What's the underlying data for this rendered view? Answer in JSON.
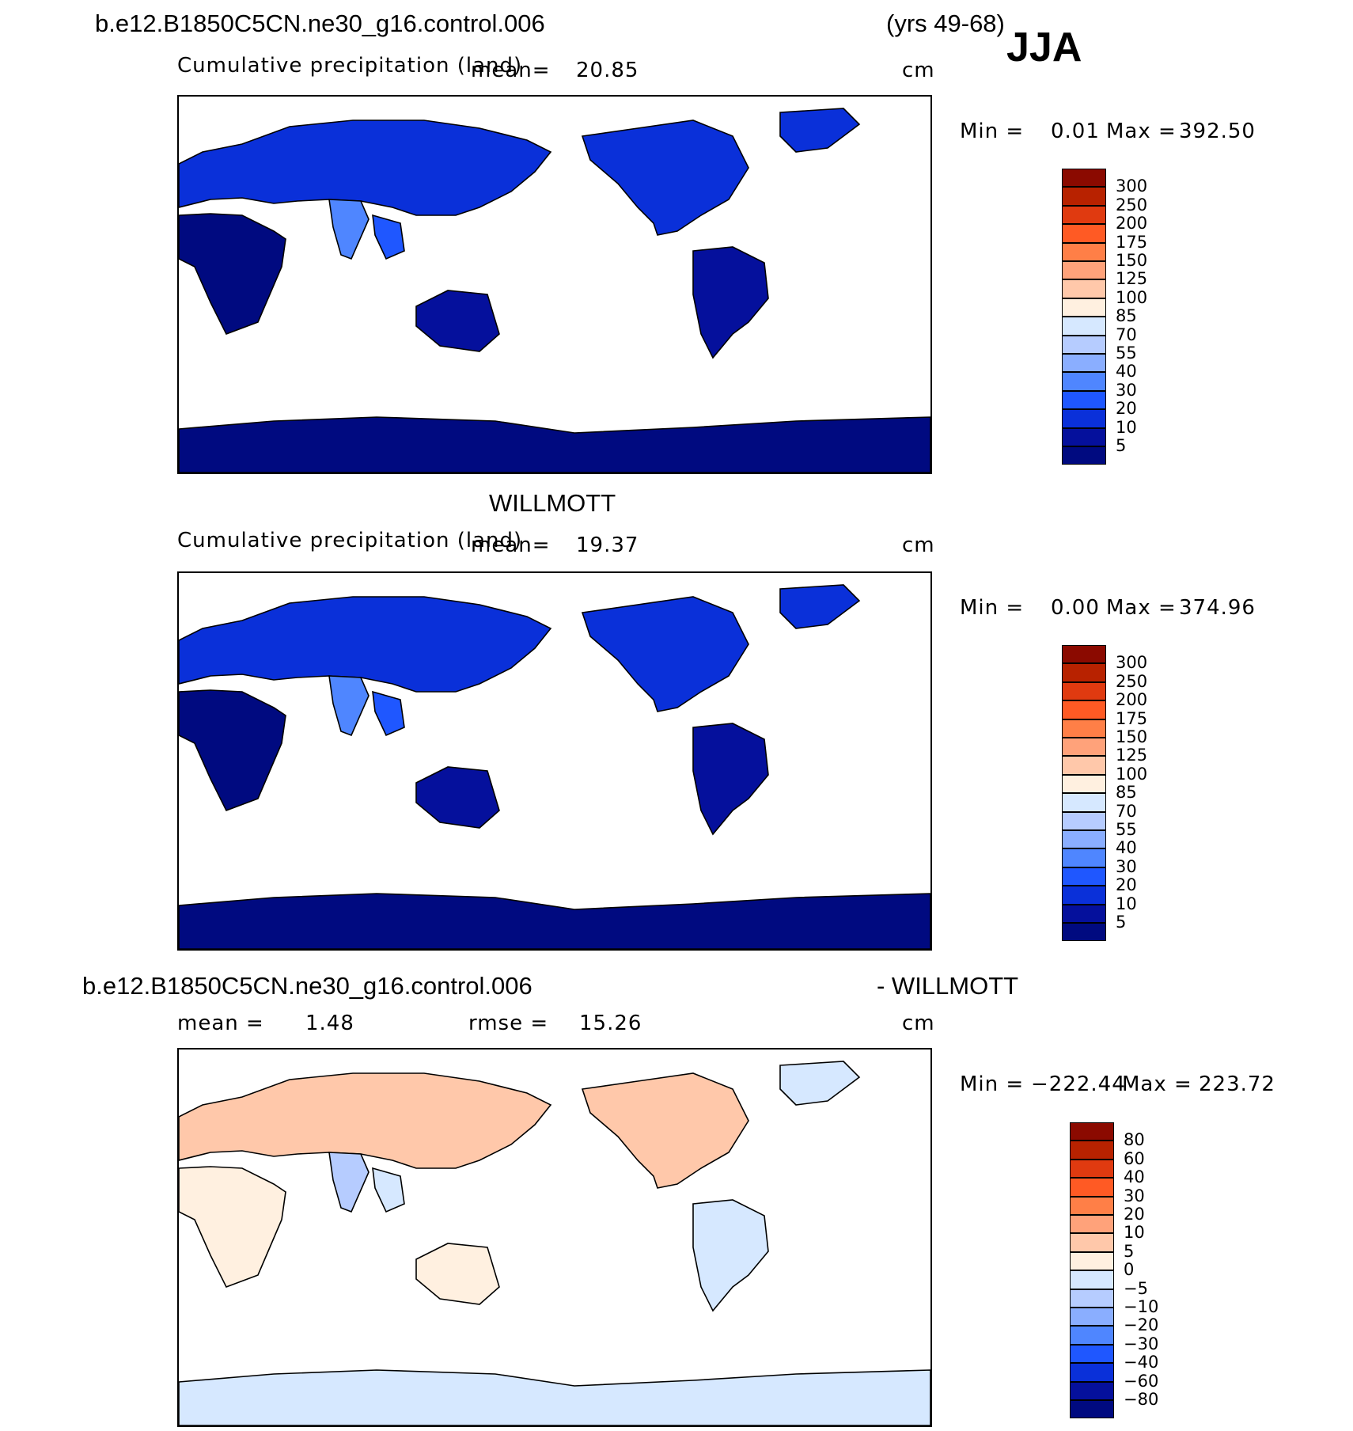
{
  "header": {
    "case_name": "b.e12.B1850C5CN.ne30_g16.control.006",
    "years": "(yrs 49-68)",
    "season": "JJA"
  },
  "chart_data": [
    {
      "type": "heatmap",
      "title": "b.e12.B1850C5CN.ne30_g16.control.006",
      "subtitle": "Cumulative precipitation (land)",
      "mean_label": "mean=",
      "mean": "20.85",
      "units": "cm",
      "stats": {
        "min_label": "Min =",
        "min": "0.01",
        "max_label": "Max =",
        "max": "392.50"
      },
      "colorbar": {
        "levels": [
          "300",
          "250",
          "200",
          "175",
          "150",
          "125",
          "100",
          "85",
          "70",
          "55",
          "40",
          "30",
          "20",
          "10",
          "5"
        ],
        "colors": [
          "#8b0a00",
          "#b82200",
          "#e03a10",
          "#ff5a24",
          "#ff7f47",
          "#ffa27a",
          "#ffc8aa",
          "#fff0e0",
          "#d6e8ff",
          "#b6ccff",
          "#8aaeff",
          "#4f86ff",
          "#1f57ff",
          "#0a30d9",
          "#05109c",
          "#000a80"
        ]
      }
    },
    {
      "type": "heatmap",
      "title": "WILLMOTT",
      "subtitle": "Cumulative precipitation (land)",
      "mean_label": "mean=",
      "mean": "19.37",
      "units": "cm",
      "stats": {
        "min_label": "Min =",
        "min": "0.00",
        "max_label": "Max =",
        "max": "374.96"
      },
      "colorbar": {
        "levels": [
          "300",
          "250",
          "200",
          "175",
          "150",
          "125",
          "100",
          "85",
          "70",
          "55",
          "40",
          "30",
          "20",
          "10",
          "5"
        ],
        "colors": [
          "#8b0a00",
          "#b82200",
          "#e03a10",
          "#ff5a24",
          "#ff7f47",
          "#ffa27a",
          "#ffc8aa",
          "#fff0e0",
          "#d6e8ff",
          "#b6ccff",
          "#8aaeff",
          "#4f86ff",
          "#1f57ff",
          "#0a30d9",
          "#05109c",
          "#000a80"
        ]
      }
    },
    {
      "type": "heatmap",
      "title_left": "b.e12.B1850C5CN.ne30_g16.control.006",
      "title_right": "- WILLMOTT",
      "mean_label": "mean =",
      "mean": "1.48",
      "rmse_label": "rmse =",
      "rmse": "15.26",
      "units": "cm",
      "stats": {
        "min_label": "Min =",
        "min": "−222.44",
        "max_label": "Max =",
        "max": "223.72"
      },
      "colorbar": {
        "levels": [
          "80",
          "60",
          "40",
          "30",
          "20",
          "10",
          "5",
          "0",
          "−5",
          "−10",
          "−20",
          "−30",
          "−40",
          "−60",
          "−80"
        ],
        "colors": [
          "#8b0a00",
          "#b82200",
          "#e03a10",
          "#ff5a24",
          "#ff7f47",
          "#ffa27a",
          "#ffc8aa",
          "#fff0e0",
          "#d6e8ff",
          "#b6ccff",
          "#8aaeff",
          "#4f86ff",
          "#1f57ff",
          "#0a30d9",
          "#05109c",
          "#000a80"
        ]
      }
    }
  ]
}
